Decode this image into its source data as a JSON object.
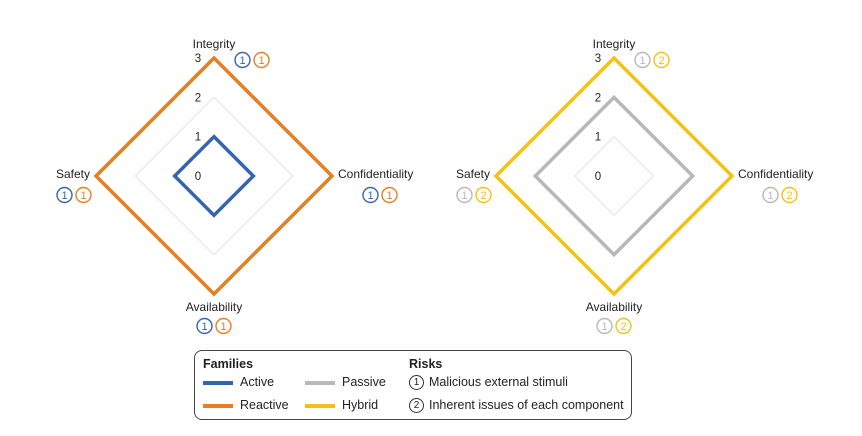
{
  "colors": {
    "active": "#3464b0",
    "reactive": "#e67e22",
    "passive": "#b8b8b8",
    "hybrid": "#f5c211",
    "grid": "#e2e2e2",
    "text": "#222222"
  },
  "chart_data": [
    {
      "type": "radar",
      "axes": [
        "Integrity",
        "Confidentiality",
        "Availability",
        "Safety"
      ],
      "scale": {
        "min": 0,
        "max": 3,
        "ticks": [
          "0",
          "1",
          "2",
          "3"
        ]
      },
      "grid": true,
      "series": [
        {
          "name": "Active",
          "color_key": "active",
          "values": [
            1,
            1,
            1,
            1
          ]
        },
        {
          "name": "Reactive",
          "color_key": "reactive",
          "values": [
            3,
            3,
            3,
            3
          ]
        }
      ],
      "risk_markers": {
        "Integrity": [
          {
            "label": "1",
            "series": "Active"
          },
          {
            "label": "1",
            "series": "Reactive"
          }
        ],
        "Confidentiality": [
          {
            "label": "1",
            "series": "Active"
          },
          {
            "label": "1",
            "series": "Reactive"
          }
        ],
        "Availability": [
          {
            "label": "1",
            "series": "Active"
          },
          {
            "label": "1",
            "series": "Reactive"
          }
        ],
        "Safety": [
          {
            "label": "1",
            "series": "Active"
          },
          {
            "label": "1",
            "series": "Reactive"
          }
        ]
      }
    },
    {
      "type": "radar",
      "axes": [
        "Integrity",
        "Confidentiality",
        "Availability",
        "Safety"
      ],
      "scale": {
        "min": 0,
        "max": 3,
        "ticks": [
          "0",
          "1",
          "2",
          "3"
        ]
      },
      "grid": true,
      "series": [
        {
          "name": "Passive",
          "color_key": "passive",
          "values": [
            2,
            2,
            2,
            2
          ]
        },
        {
          "name": "Hybrid",
          "color_key": "hybrid",
          "values": [
            3,
            3,
            3,
            3
          ]
        }
      ],
      "risk_markers": {
        "Integrity": [
          {
            "label": "1",
            "series": "Passive"
          },
          {
            "label": "2",
            "series": "Hybrid"
          }
        ],
        "Confidentiality": [
          {
            "label": "1",
            "series": "Passive"
          },
          {
            "label": "2",
            "series": "Hybrid"
          }
        ],
        "Availability": [
          {
            "label": "1",
            "series": "Passive"
          },
          {
            "label": "2",
            "series": "Hybrid"
          }
        ],
        "Safety": [
          {
            "label": "1",
            "series": "Passive"
          },
          {
            "label": "2",
            "series": "Hybrid"
          }
        ]
      }
    }
  ],
  "legend": {
    "families_title": "Families",
    "families": [
      {
        "name": "Active",
        "color_key": "active"
      },
      {
        "name": "Passive",
        "color_key": "passive"
      },
      {
        "name": "Reactive",
        "color_key": "reactive"
      },
      {
        "name": "Hybrid",
        "color_key": "hybrid"
      }
    ],
    "risks_title": "Risks",
    "risks": [
      {
        "num": "1",
        "text": "Malicious external stimuli"
      },
      {
        "num": "2",
        "text": "Inherent issues of each component"
      }
    ]
  }
}
